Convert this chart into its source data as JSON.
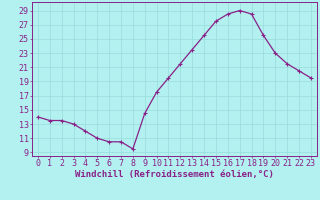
{
  "x": [
    0,
    1,
    2,
    3,
    4,
    5,
    6,
    7,
    8,
    9,
    10,
    11,
    12,
    13,
    14,
    15,
    16,
    17,
    18,
    19,
    20,
    21,
    22,
    23
  ],
  "y": [
    14,
    13.5,
    13.5,
    13,
    12,
    11,
    10.5,
    10.5,
    9.5,
    14.5,
    17.5,
    19.5,
    21.5,
    23.5,
    25.5,
    27.5,
    28.5,
    29,
    28.5,
    25.5,
    23,
    21.5,
    20.5,
    19.5
  ],
  "line_color": "#882288",
  "marker": "+",
  "marker_size": 3,
  "marker_lw": 0.8,
  "bg_color": "#b3f0f0",
  "grid_color": "#99dddd",
  "xlabel": "Windchill (Refroidissement éolien,°C)",
  "ytick_vals": [
    9,
    11,
    13,
    15,
    17,
    19,
    21,
    23,
    25,
    27,
    29
  ],
  "xlim": [
    -0.5,
    23.5
  ],
  "ylim": [
    8.5,
    30.2
  ],
  "xlabel_fontsize": 6.5,
  "tick_fontsize": 6,
  "tick_color": "#882288",
  "spine_color": "#882288",
  "line_width": 0.9
}
